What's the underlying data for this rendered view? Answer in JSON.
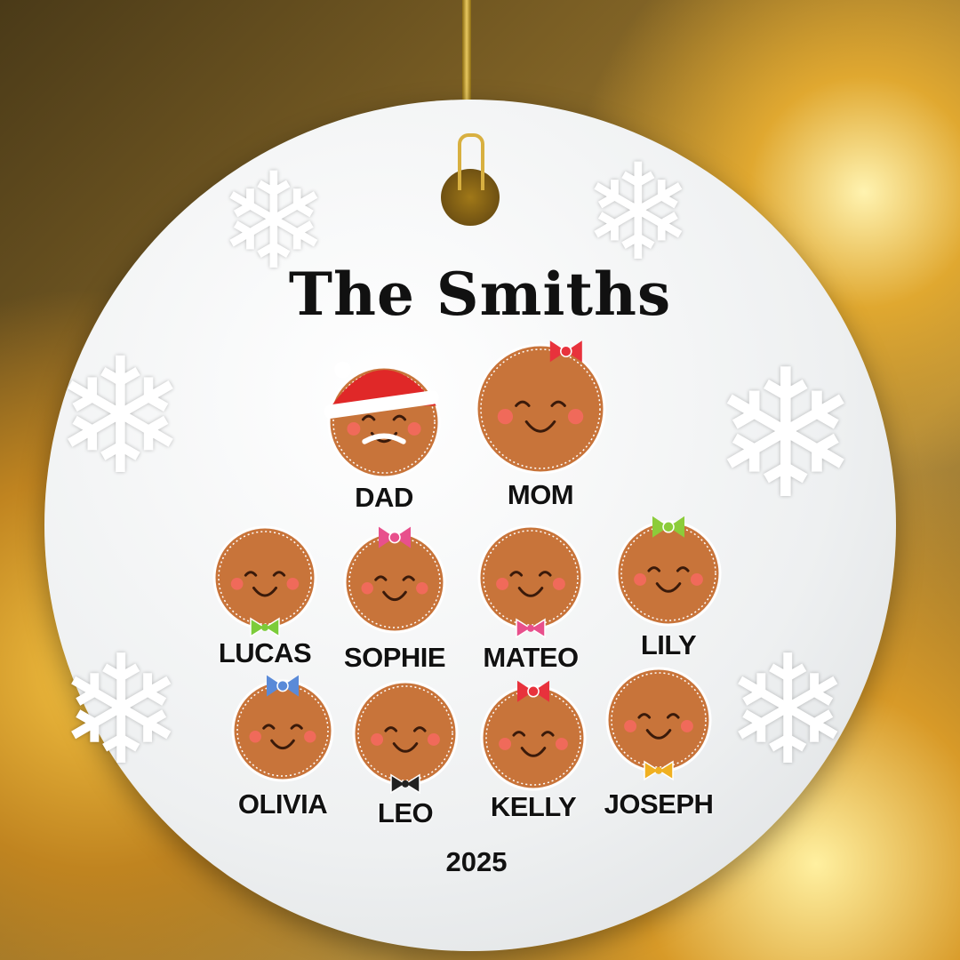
{
  "ornament": {
    "title": "The Smiths",
    "year": "2025",
    "members": [
      {
        "name": "DAD",
        "accessory": "santa-hat"
      },
      {
        "name": "MOM",
        "accessory": "bow",
        "accessory_color": "#e8323c"
      },
      {
        "name": "LUCAS",
        "accessory": "bowtie",
        "accessory_color": "#7ccc3a"
      },
      {
        "name": "SOPHIE",
        "accessory": "bow",
        "accessory_color": "#e8508c"
      },
      {
        "name": "MATEO",
        "accessory": "bowtie",
        "accessory_color": "#e8508c"
      },
      {
        "name": "LILY",
        "accessory": "bow",
        "accessory_color": "#8ccc3a"
      },
      {
        "name": "OLIVIA",
        "accessory": "bow",
        "accessory_color": "#5a8ad8"
      },
      {
        "name": "LEO",
        "accessory": "bowtie",
        "accessory_color": "#222222"
      },
      {
        "name": "KELLY",
        "accessory": "bow",
        "accessory_color": "#e8323c"
      },
      {
        "name": "JOSEPH",
        "accessory": "bowtie",
        "accessory_color": "#f0b020"
      }
    ]
  },
  "colors": {
    "cookie": "#c8743a",
    "icing": "#ffffff",
    "cheek": "#f06a5a",
    "hat": "#e02828"
  }
}
